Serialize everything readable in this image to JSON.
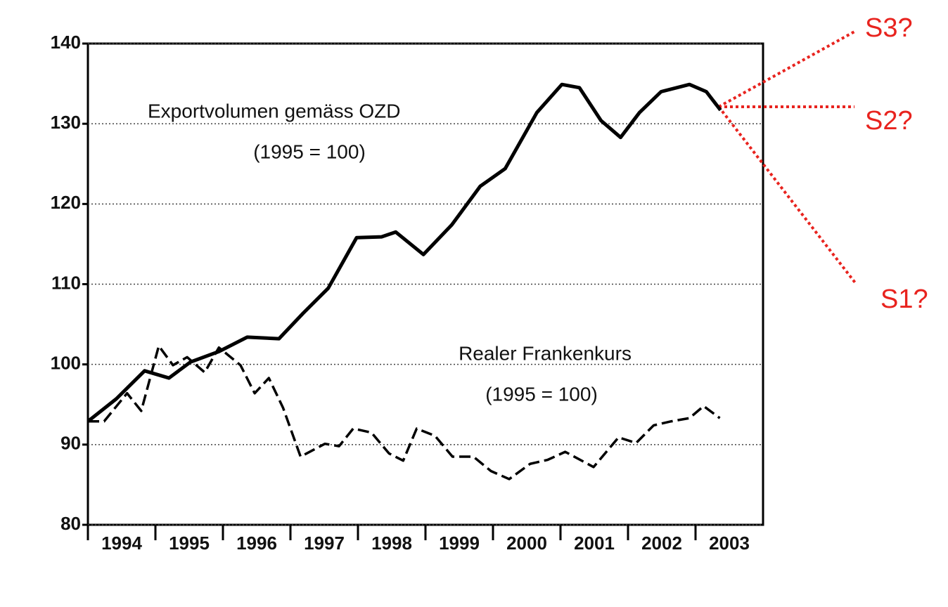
{
  "chart_data": {
    "type": "line",
    "annotations": [
      "Exportvolumen gemäss OZD",
      "(1995 = 100)",
      "Realer Frankenkurs",
      "(1995 = 100)",
      "S3?",
      "S2?",
      "S1?"
    ],
    "xlim": [
      1994,
      2004
    ],
    "xticks": [
      1994,
      1995,
      1996,
      1997,
      1998,
      1999,
      2000,
      2001,
      2002,
      2003
    ],
    "ylim": [
      80,
      140
    ],
    "yticks": [
      80,
      90,
      100,
      110,
      120,
      130,
      140
    ],
    "grid": true,
    "series": [
      {
        "name": "Exportvolumen gemäss OZD",
        "color": "#000000",
        "dash": false,
        "x": [
          1994.0,
          1994.42,
          1994.84,
          1995.2,
          1995.52,
          1995.94,
          1996.36,
          1996.83,
          1997.19,
          1997.56,
          1997.98,
          1998.35,
          1998.56,
          1998.97,
          1999.39,
          1999.81,
          2000.18,
          2000.65,
          2001.02,
          2001.28,
          2001.6,
          2001.89,
          2002.17,
          2002.49,
          2002.91,
          2003.16,
          2003.37
        ],
        "values": [
          92.9,
          95.7,
          99.2,
          98.3,
          100.3,
          101.6,
          103.4,
          103.2,
          106.4,
          109.5,
          115.8,
          115.9,
          116.5,
          113.7,
          117.4,
          122.2,
          124.4,
          131.4,
          134.9,
          134.5,
          130.4,
          128.3,
          131.4,
          134.0,
          134.9,
          134.0,
          131.7
        ]
      },
      {
        "name": "Realer Frankenkurs",
        "color": "#000000",
        "dash": true,
        "x": [
          1994.0,
          1994.24,
          1994.58,
          1994.79,
          1995.05,
          1995.26,
          1995.47,
          1995.73,
          1995.94,
          1996.26,
          1996.47,
          1996.68,
          1996.89,
          1997.15,
          1997.51,
          1997.72,
          1997.93,
          1998.2,
          1998.46,
          1998.67,
          1998.87,
          1999.14,
          1999.4,
          1999.71,
          1999.97,
          2000.24,
          2000.55,
          2000.81,
          2001.07,
          2001.49,
          2001.86,
          2002.12,
          2002.38,
          2002.64,
          2002.91,
          2003.12,
          2003.36
        ],
        "values": [
          92.9,
          92.9,
          96.4,
          94.2,
          102.3,
          99.9,
          100.9,
          99.0,
          102.1,
          99.9,
          96.4,
          98.3,
          94.6,
          88.5,
          90.1,
          89.8,
          92.0,
          91.5,
          88.9,
          88.0,
          92.0,
          91.1,
          88.5,
          88.5,
          86.7,
          85.7,
          87.6,
          88.1,
          89.1,
          87.2,
          90.9,
          90.2,
          92.4,
          92.9,
          93.3,
          94.8,
          93.3
        ]
      }
    ]
  }
}
